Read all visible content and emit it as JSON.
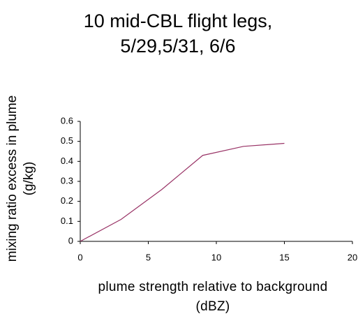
{
  "chart_data": {
    "type": "line",
    "title": "10 mid-CBL flight legs, 5/29,5/31, 6/6",
    "x_label": "plume strength relative to background (dBZ)",
    "y_label": "mixing ratio excess in plume (g/kg)",
    "x": [
      0,
      3,
      6,
      9,
      12,
      15
    ],
    "series": [
      {
        "color": "#993366",
        "values": [
          0,
          0.11,
          0.26,
          0.43,
          0.475,
          0.49
        ]
      }
    ],
    "xlim": [
      0,
      20
    ],
    "xticks": [
      0,
      5,
      10,
      15,
      20
    ],
    "ylim": [
      0,
      0.6
    ],
    "yticks": [
      0,
      0.1,
      0.2,
      0.3,
      0.4,
      0.5,
      0.6
    ],
    "grid": false
  }
}
